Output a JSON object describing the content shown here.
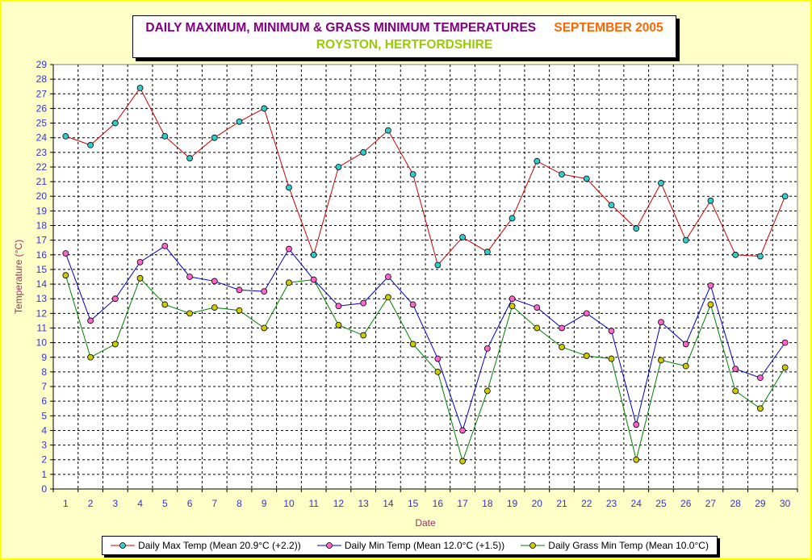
{
  "title": {
    "main": "DAILY MAXIMUM, MINIMUM & GRASS MINIMUM TEMPERATURES",
    "month": "SEPTEMBER 2005",
    "location": "ROYSTON, HERTFORDSHIRE"
  },
  "colors": {
    "background": "#ffffc8",
    "max_line": "#cc0000",
    "max_marker": "#33cccc",
    "min_line": "#0000cc",
    "min_marker": "#ff66cc",
    "grass_line": "#008000",
    "grass_marker": "#cccc00"
  },
  "chart_data": {
    "type": "line",
    "xlabel": "Date",
    "ylabel": "Temperature (°C)",
    "ylim": [
      0,
      29
    ],
    "grid": true,
    "legend_position": "bottom",
    "x": [
      1,
      2,
      3,
      4,
      5,
      6,
      7,
      8,
      9,
      10,
      11,
      12,
      13,
      14,
      15,
      16,
      17,
      18,
      19,
      20,
      21,
      22,
      23,
      24,
      25,
      26,
      27,
      28,
      29,
      30
    ],
    "series": [
      {
        "name": "Daily Max Temp (Mean 20.9°C (+2.2))",
        "values": [
          24.1,
          23.5,
          25.0,
          27.4,
          24.1,
          22.6,
          24.0,
          25.1,
          26.0,
          20.6,
          16.0,
          22.0,
          23.0,
          24.5,
          21.5,
          15.3,
          17.2,
          16.2,
          18.5,
          22.4,
          21.5,
          21.2,
          19.4,
          17.8,
          20.9,
          17.0,
          19.7,
          16.0,
          15.9,
          20.0
        ]
      },
      {
        "name": "Daily Min Temp (Mean 12.0°C (+1.5))",
        "values": [
          16.1,
          11.5,
          13.0,
          15.5,
          16.6,
          14.5,
          14.2,
          13.6,
          13.5,
          16.4,
          14.3,
          12.5,
          12.7,
          14.5,
          12.6,
          8.9,
          4.0,
          9.6,
          13.0,
          12.4,
          11.0,
          12.0,
          10.8,
          4.4,
          11.4,
          9.9,
          13.9,
          8.2,
          7.6,
          10.0
        ]
      },
      {
        "name": "Daily Grass Min Temp (Mean 10.0°C)",
        "values": [
          14.6,
          9.0,
          9.9,
          14.4,
          12.6,
          12.0,
          12.4,
          12.2,
          11.0,
          14.1,
          14.3,
          11.2,
          10.5,
          13.1,
          9.9,
          8.0,
          1.9,
          6.7,
          12.5,
          11.0,
          9.7,
          9.1,
          8.9,
          2.0,
          8.8,
          8.4,
          12.6,
          6.7,
          5.5,
          8.3
        ]
      }
    ]
  }
}
